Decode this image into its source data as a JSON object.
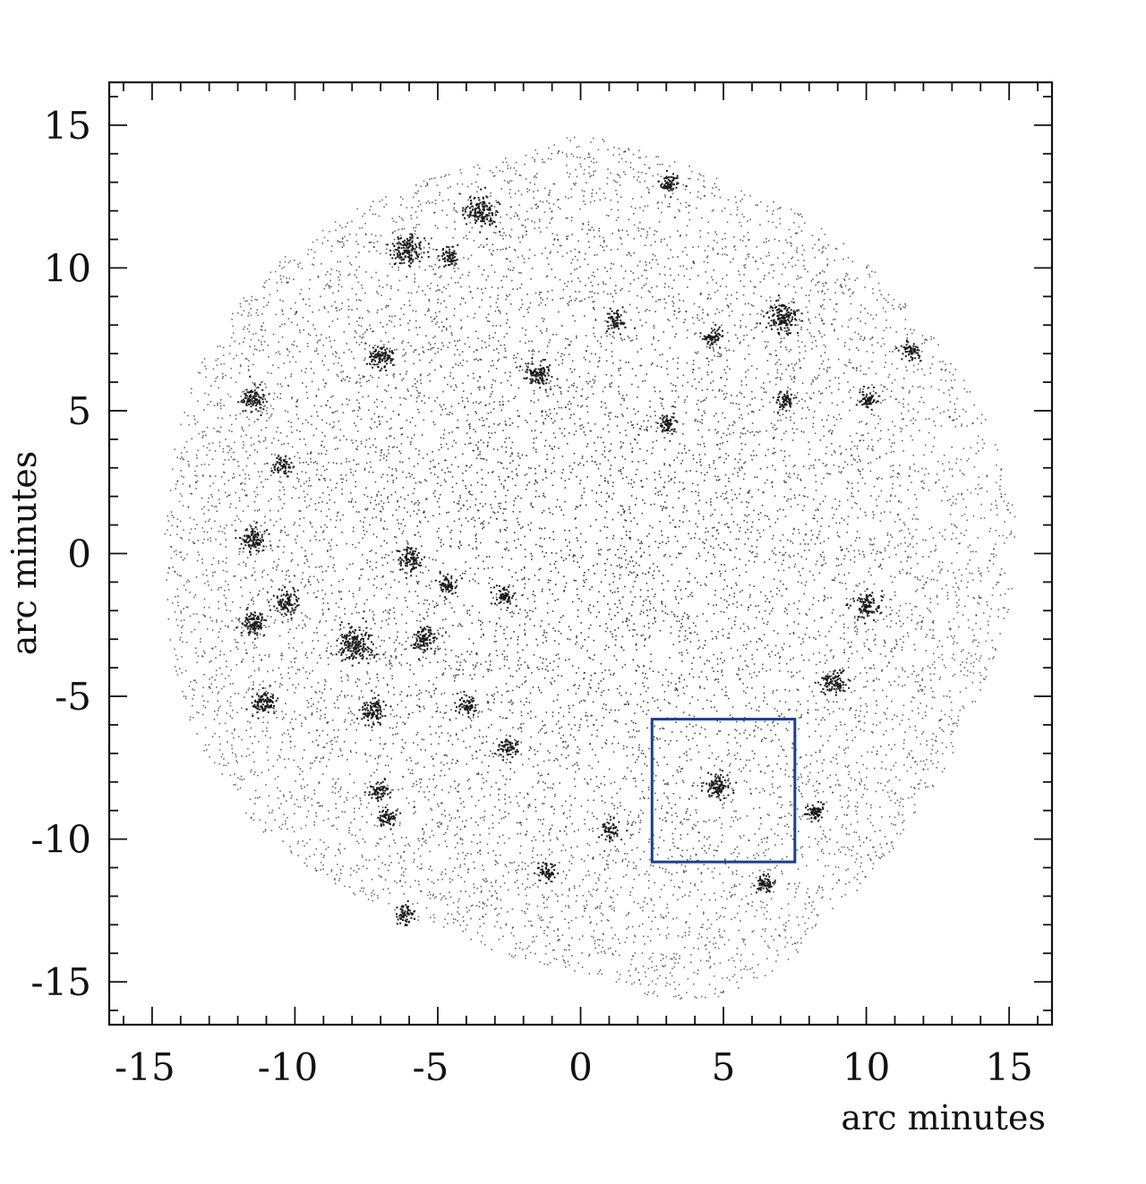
{
  "chart_data": {
    "type": "scatter",
    "title": "",
    "xlabel": "arc minutes",
    "ylabel": "arc minutes",
    "xlim": [
      -16.5,
      16.5
    ],
    "ylim": [
      -16.5,
      16.5
    ],
    "x_ticks": [
      -15,
      -10,
      -5,
      0,
      5,
      10,
      15
    ],
    "y_ticks": [
      -15,
      -10,
      -5,
      0,
      5,
      10,
      15
    ],
    "minor_tick_step": 1,
    "grid": false,
    "legend": "none",
    "point_color": "#1a1a1a",
    "field_outline": [
      [
        -14.6,
        0.5
      ],
      [
        -14.3,
        3.5
      ],
      [
        -13.6,
        6.2
      ],
      [
        -12.2,
        8.6
      ],
      [
        -10.2,
        10.6
      ],
      [
        -7.8,
        12.2
      ],
      [
        -5.0,
        13.3
      ],
      [
        -2.2,
        14.0
      ],
      [
        0.0,
        14.8
      ],
      [
        2.5,
        14.0
      ],
      [
        5.0,
        13.2
      ],
      [
        7.5,
        12.1
      ],
      [
        9.6,
        10.6
      ],
      [
        11.4,
        8.7
      ],
      [
        13.0,
        6.8
      ],
      [
        14.4,
        4.3
      ],
      [
        15.2,
        1.4
      ],
      [
        15.1,
        -1.6
      ],
      [
        14.2,
        -4.4
      ],
      [
        12.9,
        -7.2
      ],
      [
        11.2,
        -10.0
      ],
      [
        9.2,
        -12.3
      ],
      [
        7.4,
        -14.2
      ],
      [
        5.0,
        -15.6
      ],
      [
        2.8,
        -15.6
      ],
      [
        0.5,
        -14.8
      ],
      [
        -2.5,
        -14.1
      ],
      [
        -5.0,
        -13.1
      ],
      [
        -7.8,
        -12.0
      ],
      [
        -10.3,
        -10.6
      ],
      [
        -12.2,
        -8.6
      ],
      [
        -13.6,
        -6.2
      ],
      [
        -14.4,
        -3.4
      ]
    ],
    "sources": [
      {
        "x": -3.5,
        "y": 12.0,
        "strength": 3
      },
      {
        "x": -6.1,
        "y": 10.6,
        "strength": 3
      },
      {
        "x": -4.6,
        "y": 10.4,
        "strength": 1
      },
      {
        "x": -7.0,
        "y": 6.9,
        "strength": 2
      },
      {
        "x": -1.5,
        "y": 6.3,
        "strength": 2
      },
      {
        "x": -11.5,
        "y": 5.4,
        "strength": 2
      },
      {
        "x": -10.5,
        "y": 3.1,
        "strength": 1
      },
      {
        "x": -11.5,
        "y": 0.5,
        "strength": 2
      },
      {
        "x": -6.0,
        "y": -0.2,
        "strength": 2
      },
      {
        "x": -4.7,
        "y": -1.1,
        "strength": 1
      },
      {
        "x": -10.3,
        "y": -1.7,
        "strength": 2
      },
      {
        "x": -11.5,
        "y": -2.4,
        "strength": 2
      },
      {
        "x": -7.9,
        "y": -3.2,
        "strength": 4
      },
      {
        "x": -5.5,
        "y": -3.0,
        "strength": 2
      },
      {
        "x": -2.7,
        "y": -1.5,
        "strength": 1
      },
      {
        "x": -11.1,
        "y": -5.2,
        "strength": 2
      },
      {
        "x": -7.3,
        "y": -5.5,
        "strength": 2
      },
      {
        "x": -4.0,
        "y": -5.3,
        "strength": 1
      },
      {
        "x": -2.6,
        "y": -6.8,
        "strength": 1
      },
      {
        "x": -7.1,
        "y": -8.3,
        "strength": 1
      },
      {
        "x": -6.8,
        "y": -9.2,
        "strength": 1
      },
      {
        "x": -6.2,
        "y": -12.6,
        "strength": 1
      },
      {
        "x": -1.2,
        "y": -11.1,
        "strength": 1
      },
      {
        "x": 1.0,
        "y": -9.7,
        "strength": 1
      },
      {
        "x": 4.8,
        "y": -8.1,
        "strength": 2
      },
      {
        "x": 8.2,
        "y": -9.0,
        "strength": 1
      },
      {
        "x": 6.4,
        "y": -11.5,
        "strength": 1
      },
      {
        "x": 7.0,
        "y": 8.3,
        "strength": 3
      },
      {
        "x": 7.1,
        "y": 5.4,
        "strength": 1
      },
      {
        "x": 10.0,
        "y": 5.4,
        "strength": 1
      },
      {
        "x": 11.5,
        "y": 7.1,
        "strength": 1
      },
      {
        "x": 10.0,
        "y": -1.8,
        "strength": 2
      },
      {
        "x": 8.8,
        "y": -4.5,
        "strength": 2
      },
      {
        "x": 3.0,
        "y": 4.6,
        "strength": 1
      },
      {
        "x": 3.1,
        "y": 13.0,
        "strength": 1
      },
      {
        "x": 1.2,
        "y": 8.2,
        "strength": 1
      },
      {
        "x": 4.6,
        "y": 7.6,
        "strength": 1
      }
    ],
    "annotations": [
      {
        "type": "box",
        "x0": 2.5,
        "x1": 7.5,
        "y0": -10.8,
        "y1": -5.8,
        "color": "#1c3f94"
      }
    ]
  }
}
